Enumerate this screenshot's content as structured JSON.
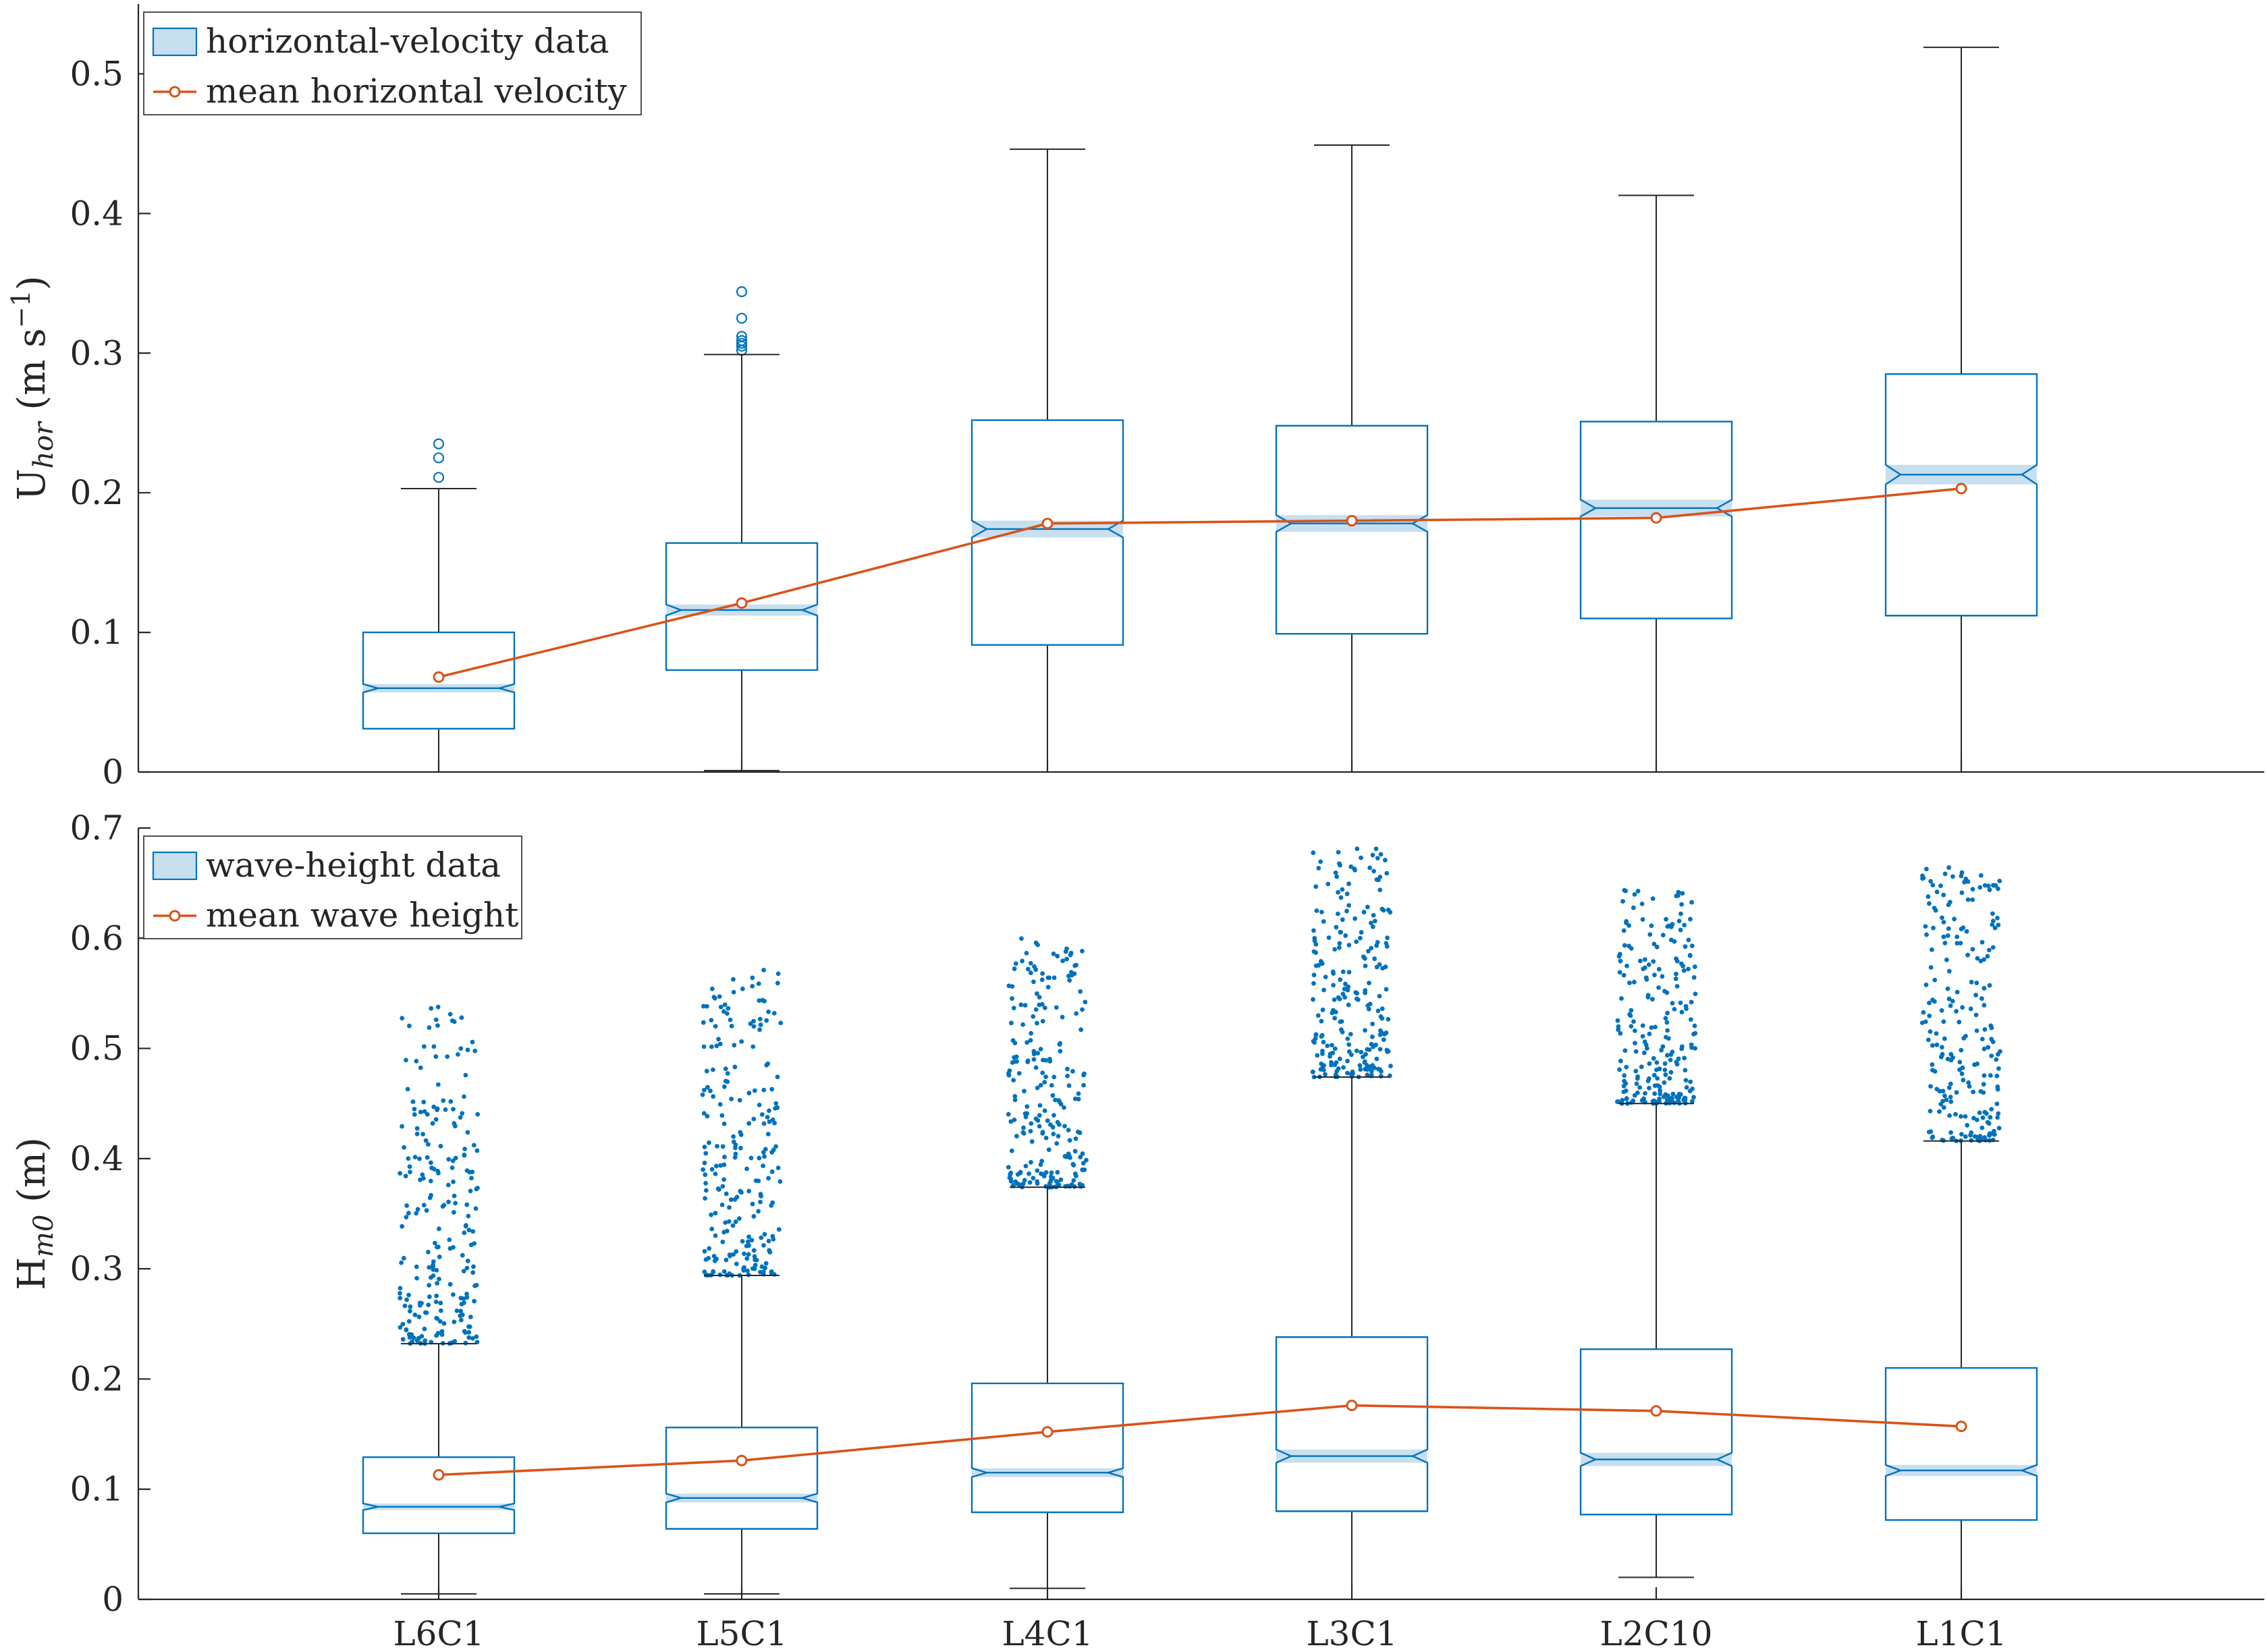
{
  "colors": {
    "box": "#0072BD",
    "box_fill": "#C8DFF0",
    "mean": "#D95319",
    "axis": "#262626",
    "whisker": "#262626"
  },
  "chart_data": [
    {
      "type": "box",
      "categories": [
        "L6C1",
        "L5C1",
        "L4C1",
        "L3C1",
        "L2C10",
        "L1C1"
      ],
      "ylabel": {
        "base": "U",
        "sub": "hor",
        "units_pre": " (m s",
        "sup": "−1",
        "units_post": ")"
      },
      "ylim": [
        0,
        0.55
      ],
      "yticks": [
        0,
        0.1,
        0.2,
        0.3,
        0.4,
        0.5
      ],
      "ytick_labels": [
        "0",
        "0.1",
        "0.2",
        "0.3",
        "0.4",
        "0.5"
      ],
      "legend": {
        "position": "top-left",
        "box_label": "horizontal-velocity data",
        "mean_label": "mean horizontal velocity"
      },
      "boxes": [
        {
          "q1": 0.031,
          "median": 0.06,
          "q3": 0.1,
          "notch_lo": 0.057,
          "notch_hi": 0.063,
          "whisker_lo": 0.0,
          "whisker_hi": 0.203,
          "outliers": [
            0.211,
            0.225,
            0.235
          ]
        },
        {
          "q1": 0.073,
          "median": 0.116,
          "q3": 0.164,
          "notch_lo": 0.112,
          "notch_hi": 0.12,
          "whisker_lo": 0.001,
          "whisker_hi": 0.299,
          "outliers": [
            0.302,
            0.305,
            0.307,
            0.309,
            0.312,
            0.325,
            0.344
          ]
        },
        {
          "q1": 0.091,
          "median": 0.174,
          "q3": 0.252,
          "notch_lo": 0.168,
          "notch_hi": 0.18,
          "whisker_lo": 0.0,
          "whisker_hi": 0.446,
          "outliers": []
        },
        {
          "q1": 0.099,
          "median": 0.178,
          "q3": 0.248,
          "notch_lo": 0.172,
          "notch_hi": 0.184,
          "whisker_lo": 0.0,
          "whisker_hi": 0.449,
          "outliers": []
        },
        {
          "q1": 0.11,
          "median": 0.189,
          "q3": 0.251,
          "notch_lo": 0.183,
          "notch_hi": 0.195,
          "whisker_lo": 0.0,
          "whisker_hi": 0.413,
          "outliers": []
        },
        {
          "q1": 0.112,
          "median": 0.213,
          "q3": 0.285,
          "notch_lo": 0.206,
          "notch_hi": 0.22,
          "whisker_lo": 0.0,
          "whisker_hi": 0.519,
          "outliers": []
        }
      ],
      "means": [
        0.068,
        0.121,
        0.178,
        0.18,
        0.182,
        0.203
      ]
    },
    {
      "type": "box",
      "categories": [
        "L6C1",
        "L5C1",
        "L4C1",
        "L3C1",
        "L2C10",
        "L1C1"
      ],
      "ylabel": {
        "base": "H",
        "sub": "m0",
        "units_pre": " (m)",
        "sup": "",
        "units_post": ""
      },
      "ylim": [
        0,
        0.7
      ],
      "yticks": [
        0,
        0.1,
        0.2,
        0.3,
        0.4,
        0.5,
        0.6,
        0.7
      ],
      "ytick_labels": [
        "0",
        "0.1",
        "0.2",
        "0.3",
        "0.4",
        "0.5",
        "0.6",
        "0.7"
      ],
      "legend": {
        "position": "top-left",
        "box_label": "wave-height data",
        "mean_label": "mean wave height"
      },
      "boxes": [
        {
          "q1": 0.06,
          "median": 0.084,
          "q3": 0.129,
          "notch_lo": 0.081,
          "notch_hi": 0.087,
          "whisker_lo": 0.005,
          "whisker_hi": 0.232,
          "outlier_range": [
            0.232,
            0.54
          ],
          "outlier_count": 230
        },
        {
          "q1": 0.064,
          "median": 0.092,
          "q3": 0.156,
          "notch_lo": 0.088,
          "notch_hi": 0.096,
          "whisker_lo": 0.005,
          "whisker_hi": 0.294,
          "outlier_range": [
            0.294,
            0.573
          ],
          "outlier_count": 230
        },
        {
          "q1": 0.079,
          "median": 0.115,
          "q3": 0.196,
          "notch_lo": 0.111,
          "notch_hi": 0.119,
          "whisker_lo": 0.01,
          "whisker_hi": 0.374,
          "outlier_range": [
            0.374,
            0.6
          ],
          "outlier_count": 230
        },
        {
          "q1": 0.08,
          "median": 0.13,
          "q3": 0.238,
          "notch_lo": 0.124,
          "notch_hi": 0.136,
          "whisker_lo": 0.0,
          "whisker_hi": 0.474,
          "outlier_range": [
            0.474,
            0.683
          ],
          "outlier_count": 230
        },
        {
          "q1": 0.077,
          "median": 0.127,
          "q3": 0.227,
          "notch_lo": 0.121,
          "notch_hi": 0.133,
          "whisker_lo": 0.02,
          "whisker_hi": 0.45,
          "outlier_range": [
            0.45,
            0.647
          ],
          "outlier_count": 230
        },
        {
          "q1": 0.072,
          "median": 0.117,
          "q3": 0.21,
          "notch_lo": 0.112,
          "notch_hi": 0.122,
          "whisker_lo": 0.0,
          "whisker_hi": 0.416,
          "outlier_range": [
            0.416,
            0.666
          ],
          "outlier_count": 220
        }
      ],
      "means": [
        0.113,
        0.126,
        0.152,
        0.176,
        0.171,
        0.157
      ]
    }
  ]
}
